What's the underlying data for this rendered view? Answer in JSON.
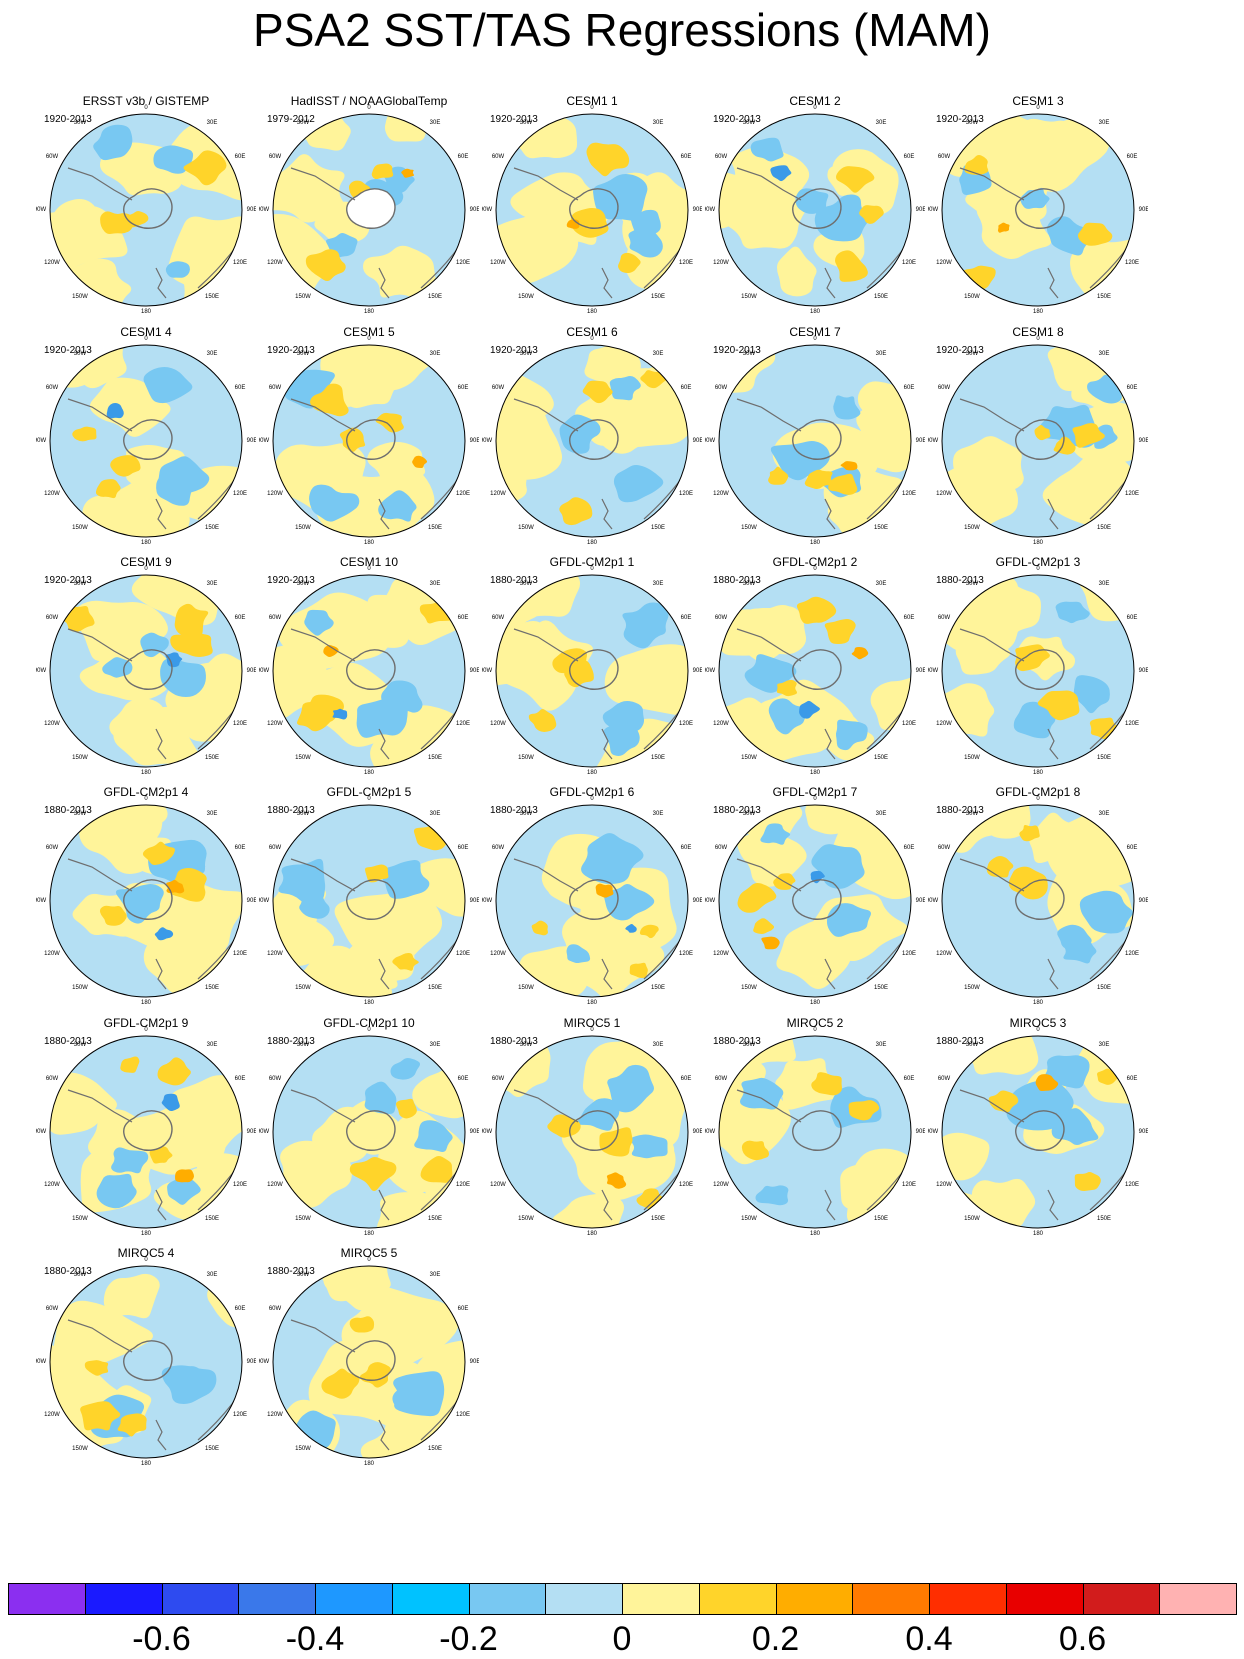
{
  "title": "PSA2 SST/TAS Regressions (MAM)",
  "panels": [
    {
      "title": "ERSST v3b / GISTEMP",
      "period": "1920-2013"
    },
    {
      "title": "HadISST / NOAAGlobalTemp",
      "period": "1979-2012"
    },
    {
      "title": "CESM1 1",
      "period": "1920-2013"
    },
    {
      "title": "CESM1 2",
      "period": "1920-2013"
    },
    {
      "title": "CESM1 3",
      "period": "1920-2013"
    },
    {
      "title": "CESM1 4",
      "period": "1920-2013"
    },
    {
      "title": "CESM1 5",
      "period": "1920-2013"
    },
    {
      "title": "CESM1 6",
      "period": "1920-2013"
    },
    {
      "title": "CESM1 7",
      "period": "1920-2013"
    },
    {
      "title": "CESM1 8",
      "period": "1920-2013"
    },
    {
      "title": "CESM1 9",
      "period": "1920-2013"
    },
    {
      "title": "CESM1 10",
      "period": "1920-2013"
    },
    {
      "title": "GFDL-CM2p1 1",
      "period": "1880-2013"
    },
    {
      "title": "GFDL-CM2p1 2",
      "period": "1880-2013"
    },
    {
      "title": "GFDL-CM2p1 3",
      "period": "1880-2013"
    },
    {
      "title": "GFDL-CM2p1 4",
      "period": "1880-2013"
    },
    {
      "title": "GFDL-CM2p1 5",
      "period": "1880-2013"
    },
    {
      "title": "GFDL-CM2p1 6",
      "period": "1880-2013"
    },
    {
      "title": "GFDL-CM2p1 7",
      "period": "1880-2013"
    },
    {
      "title": "GFDL-CM2p1 8",
      "period": "1880-2013"
    },
    {
      "title": "GFDL-CM2p1 9",
      "period": "1880-2013"
    },
    {
      "title": "GFDL-CM2p1 10",
      "period": "1880-2013"
    },
    {
      "title": "MIROC5 1",
      "period": "1880-2013"
    },
    {
      "title": "MIROC5 2",
      "period": "1880-2013"
    },
    {
      "title": "MIROC5 3",
      "period": "1880-2013"
    },
    {
      "title": "MIROC5 4",
      "period": "1880-2013"
    },
    {
      "title": "MIROC5 5",
      "period": "1880-2013"
    }
  ],
  "longitude_labels": [
    "0",
    "30E",
    "60E",
    "90E",
    "120E",
    "150E",
    "180",
    "150W",
    "120W",
    "90W",
    "60W",
    "30W"
  ],
  "colorbar": {
    "colors": [
      "#8b2ff0",
      "#1a1aff",
      "#2e4bf0",
      "#3a78ea",
      "#1e98ff",
      "#00c2ff",
      "#78c8f2",
      "#b4dff3",
      "#fff49a",
      "#ffd42a",
      "#ffad00",
      "#ff7a00",
      "#ff2e00",
      "#e80000",
      "#d21c1c",
      "#ffb2b2"
    ],
    "labels": [
      "-0.6",
      "-0.4",
      "-0.2",
      "0",
      "0.2",
      "0.4",
      "0.6"
    ]
  }
}
